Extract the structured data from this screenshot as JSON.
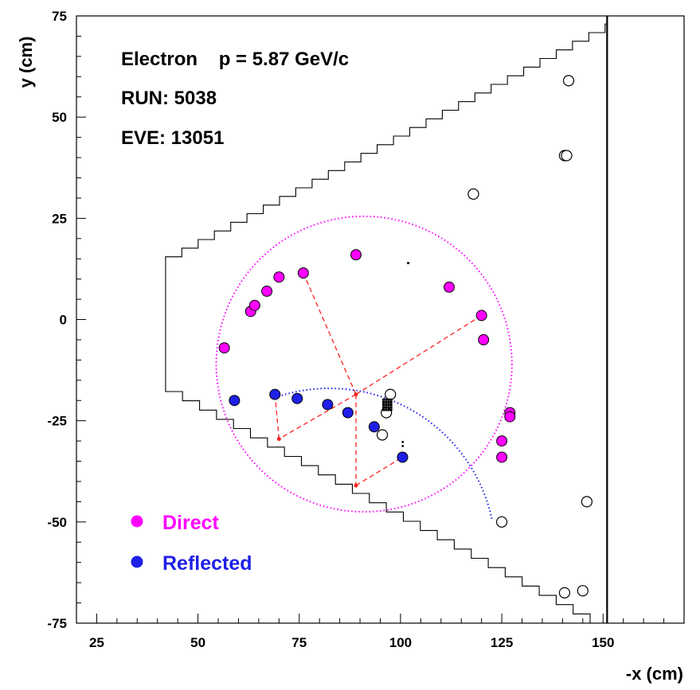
{
  "chart_data": {
    "type": "scatter",
    "title": "",
    "xlabel": "-x (cm)",
    "ylabel": "y (cm)",
    "xlim": [
      20,
      170
    ],
    "ylim": [
      -75,
      75
    ],
    "xticks": [
      25,
      50,
      75,
      100,
      125,
      150
    ],
    "yticks": [
      -75,
      -50,
      -25,
      0,
      25,
      50,
      75
    ],
    "grid": false,
    "annotations": [
      "Electron    p = 5.87 GeV/c",
      "RUN: 5038",
      "EVE: 13051"
    ],
    "legend": {
      "placement": "bottom-left",
      "entries": [
        {
          "label": "Direct",
          "color": "#ff00ff"
        },
        {
          "label": "Reflected",
          "color": "#1f1fe8"
        }
      ]
    },
    "colors": {
      "direct": "#ff00ff",
      "reflected": "#1f1fe8",
      "lines": "#ff2020",
      "outline": "#000000"
    },
    "series": [
      {
        "name": "Direct",
        "marker": "filled-circle",
        "color": "#ff00ff",
        "points": [
          [
            56.5,
            -7
          ],
          [
            63,
            2
          ],
          [
            64,
            3.5
          ],
          [
            67,
            7
          ],
          [
            70,
            10.5
          ],
          [
            76,
            11.5
          ],
          [
            89,
            16
          ],
          [
            112,
            8
          ],
          [
            120,
            1
          ],
          [
            120.5,
            -5
          ],
          [
            127,
            -23
          ],
          [
            127,
            -24
          ],
          [
            125,
            -30
          ],
          [
            125,
            -34
          ]
        ]
      },
      {
        "name": "Reflected",
        "marker": "filled-circle",
        "color": "#1f1fe8",
        "points": [
          [
            59,
            -20
          ],
          [
            69,
            -18.5
          ],
          [
            74.5,
            -19.5
          ],
          [
            82,
            -21
          ],
          [
            87,
            -23
          ],
          [
            93.5,
            -26.5
          ],
          [
            100.5,
            -34
          ]
        ]
      },
      {
        "marker": "open-circle",
        "color": "#000000",
        "points": [
          [
            141.5,
            59
          ],
          [
            140.5,
            40.5
          ],
          [
            141,
            40.5
          ],
          [
            118,
            31
          ],
          [
            146,
            -45
          ],
          [
            125,
            -50
          ],
          [
            140.5,
            -67.5
          ],
          [
            145,
            -67
          ],
          [
            97.5,
            -18.5
          ],
          [
            96.5,
            -23
          ],
          [
            95.5,
            -28.5
          ]
        ]
      }
    ],
    "reconstruction_lines": [
      [
        [
          76,
          11.5
        ],
        [
          89,
          -18.5
        ]
      ],
      [
        [
          89,
          -18.5
        ],
        [
          120,
          1
        ]
      ],
      [
        [
          89,
          -18.5
        ],
        [
          70,
          -29.5
        ]
      ],
      [
        [
          70,
          -29.5
        ],
        [
          69,
          -18.5
        ]
      ],
      [
        [
          89,
          -18.5
        ],
        [
          89,
          -41
        ]
      ],
      [
        [
          89,
          -41
        ],
        [
          100.5,
          -34
        ]
      ]
    ],
    "direct_ring": {
      "center": [
        91,
        -11
      ],
      "radius": 36.5
    },
    "reflected_arc": {
      "center": [
        82.5,
        -58
      ],
      "radius": 41,
      "from_deg": 108,
      "to_deg": 12
    }
  }
}
